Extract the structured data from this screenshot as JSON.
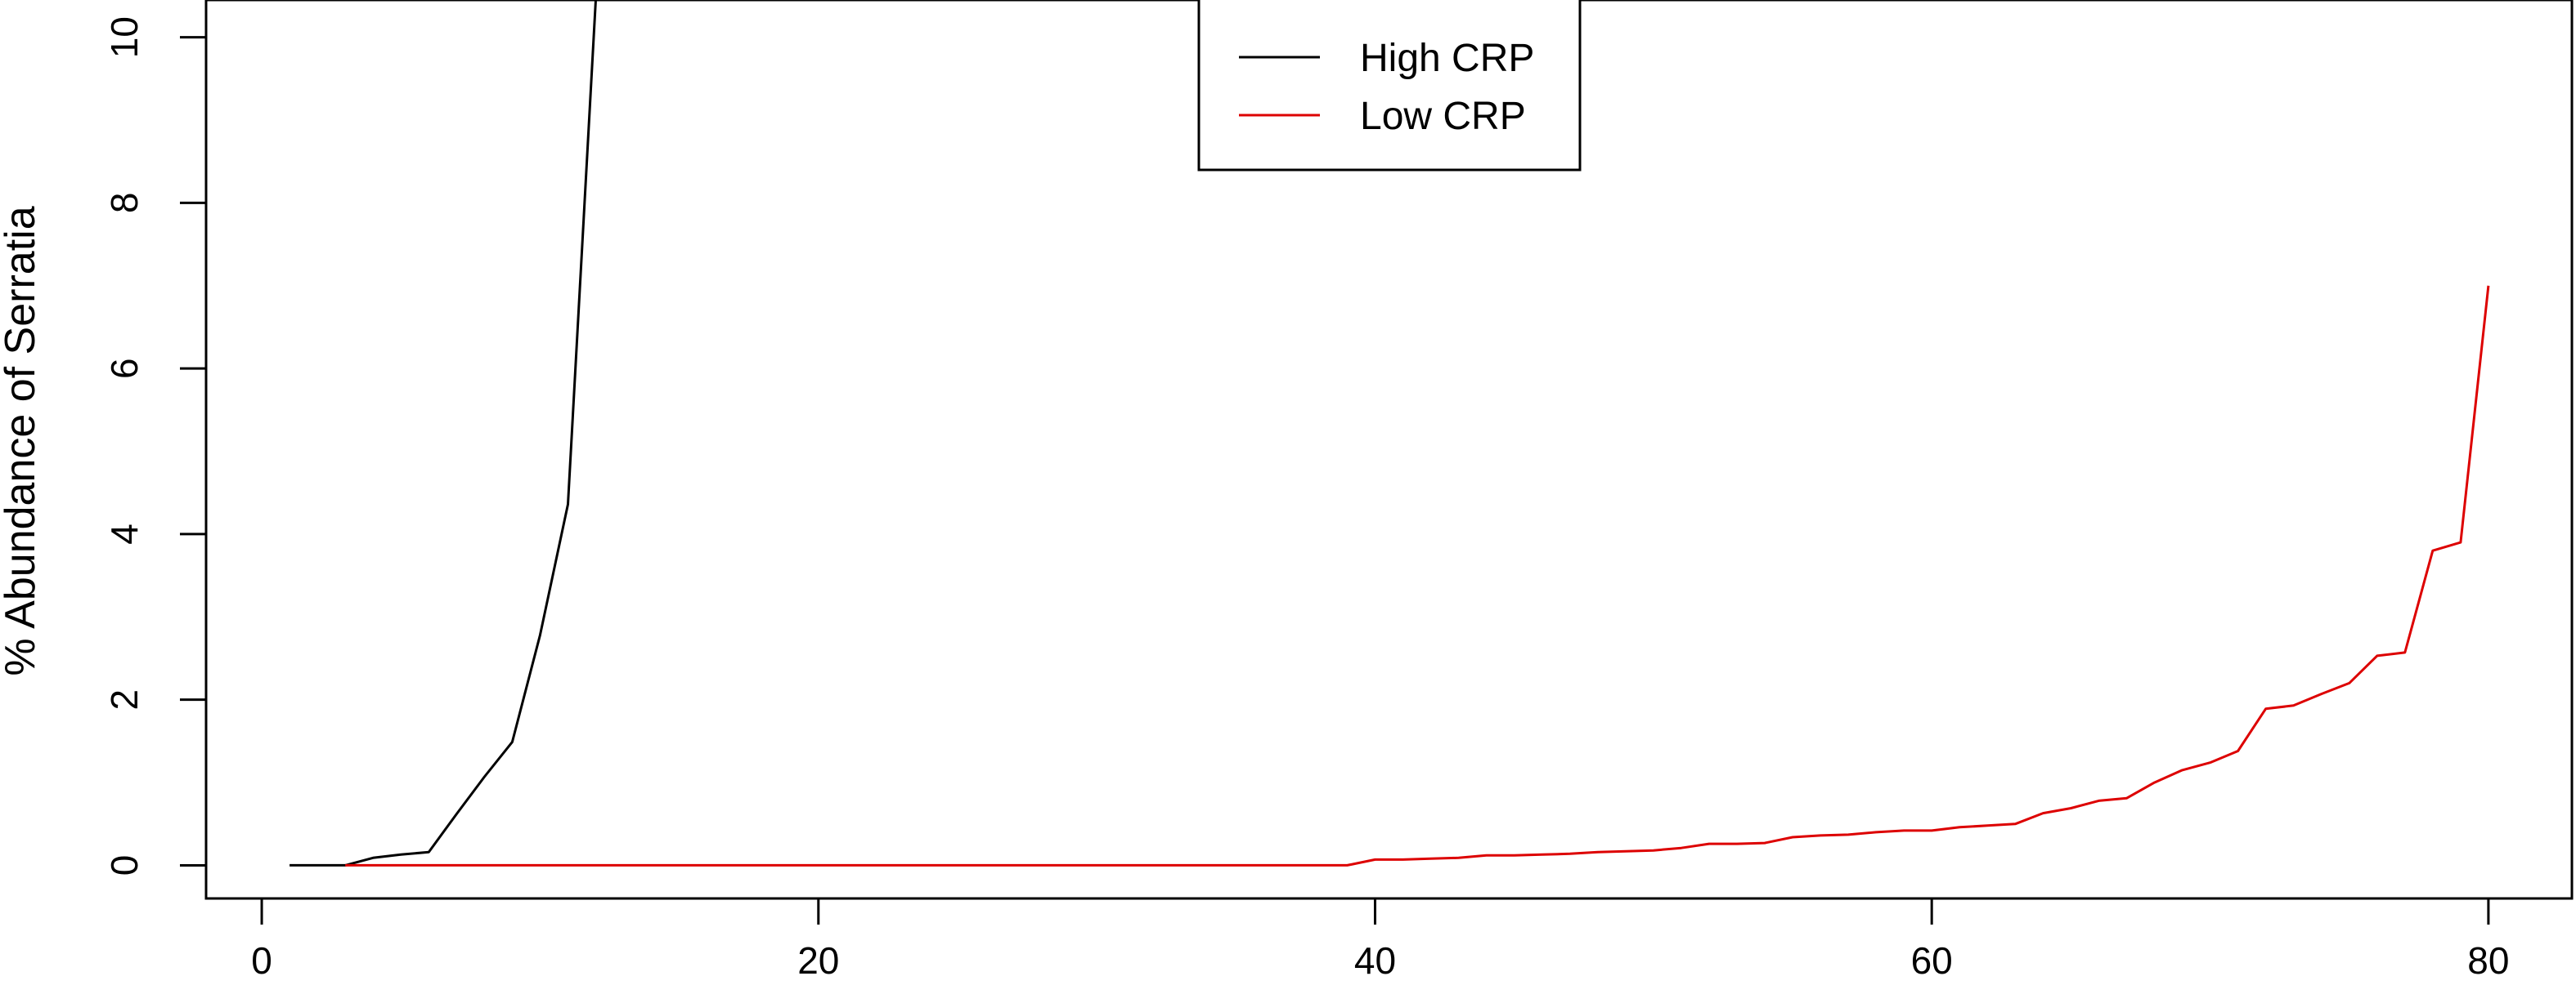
{
  "chart_data": {
    "type": "line",
    "title": "",
    "xlabel": "",
    "ylabel": "% Abundance of Serratia",
    "xlim": [
      -2,
      83
    ],
    "ylim": [
      -0.4,
      10.45
    ],
    "xticks": [
      0,
      20,
      40,
      60,
      80
    ],
    "yticks": [
      0,
      2,
      4,
      6,
      8,
      10
    ],
    "grid": false,
    "legend": {
      "placement": "top-center"
    },
    "series": [
      {
        "name": "High CRP",
        "color": "#000000",
        "x": [
          1,
          2,
          3,
          4,
          5,
          6,
          7,
          8,
          9,
          10,
          11,
          12
        ],
        "y": [
          0,
          0,
          0,
          0.09,
          0.13,
          0.16,
          0.62,
          1.07,
          1.49,
          2.78,
          4.36,
          10.45
        ]
      },
      {
        "name": "Low CRP",
        "color": "#dd0000",
        "x": [
          3,
          4,
          5,
          6,
          7,
          8,
          9,
          10,
          11,
          12,
          13,
          14,
          15,
          16,
          17,
          18,
          19,
          20,
          21,
          22,
          23,
          24,
          25,
          26,
          27,
          28,
          29,
          30,
          31,
          32,
          33,
          34,
          35,
          36,
          37,
          38,
          39,
          40,
          41,
          42,
          43,
          44,
          45,
          46,
          47,
          48,
          49,
          50,
          51,
          52,
          53,
          54,
          55,
          56,
          57,
          58,
          59,
          60,
          61,
          62,
          63,
          64,
          65,
          66,
          67,
          68,
          69,
          70,
          71,
          72,
          73,
          74,
          75,
          76,
          77,
          78,
          79,
          80
        ],
        "y": [
          0,
          0,
          0,
          0,
          0,
          0,
          0,
          0,
          0,
          0,
          0,
          0,
          0,
          0,
          0,
          0,
          0,
          0,
          0,
          0,
          0,
          0,
          0,
          0,
          0,
          0,
          0,
          0,
          0,
          0,
          0,
          0,
          0,
          0,
          0,
          0,
          0,
          0.07,
          0.07,
          0.08,
          0.09,
          0.12,
          0.12,
          0.13,
          0.14,
          0.16,
          0.17,
          0.18,
          0.21,
          0.26,
          0.26,
          0.27,
          0.34,
          0.36,
          0.37,
          0.4,
          0.42,
          0.42,
          0.46,
          0.48,
          0.5,
          0.63,
          0.69,
          0.78,
          0.81,
          1.0,
          1.15,
          1.24,
          1.38,
          1.89,
          1.93,
          2.07,
          2.2,
          2.53,
          2.57,
          3.8,
          3.9,
          7.0
        ]
      }
    ]
  }
}
